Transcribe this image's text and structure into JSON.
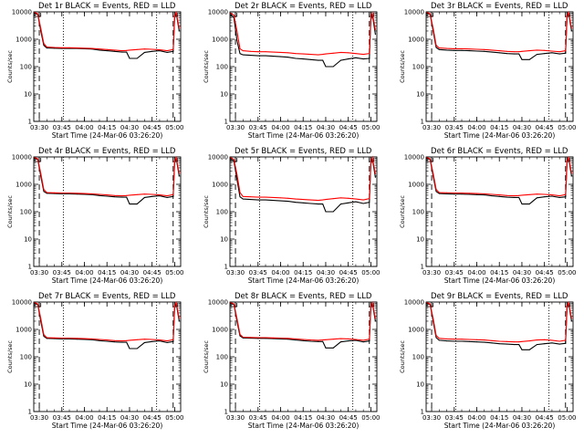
{
  "figure": {
    "x_axis_title": "Start Time (24-Mar-06 03:26:20)",
    "y_axis_title": "Counts/sec",
    "x_tick_labels": [
      "03:30",
      "03:45",
      "04:00",
      "04:15",
      "04:30",
      "04:45",
      "05:00"
    ],
    "y_tick_labels": [
      "1",
      "10",
      "100",
      "1000",
      "10000"
    ]
  },
  "colors": {
    "events": "#000000",
    "lld": "#ff0000",
    "axes": "#000000",
    "background": "#ffffff"
  },
  "chart_data": [
    {
      "type": "line",
      "title": "Det 1r BLACK = Events, RED = LLD",
      "xlabel": "Start Time (24-Mar-06 03:26:20)",
      "ylabel": "Counts/sec",
      "y_scale": "log",
      "ylim": [
        1,
        10000
      ],
      "xlim": [
        "03:26:20",
        "05:04"
      ],
      "x": [
        "03:27",
        "03:29",
        "03:31",
        "03:33",
        "03:35",
        "03:40",
        "03:45",
        "03:50",
        "03:55",
        "04:00",
        "04:05",
        "04:10",
        "04:15",
        "04:20",
        "04:25",
        "04:28",
        "04:30",
        "04:35",
        "04:40",
        "04:45",
        "04:50",
        "04:55",
        "04:59",
        "05:00",
        "05:01",
        "05:03"
      ],
      "series": [
        {
          "name": "BLACK = Events",
          "values": [
            9000,
            8000,
            2000,
            600,
            480,
            470,
            460,
            460,
            460,
            450,
            440,
            400,
            380,
            360,
            340,
            340,
            200,
            200,
            330,
            360,
            380,
            330,
            360,
            6000,
            9000,
            2000
          ]
        },
        {
          "name": "RED = LLD",
          "values": [
            9500,
            8500,
            2500,
            700,
            520,
            500,
            490,
            490,
            480,
            470,
            460,
            440,
            420,
            400,
            380,
            390,
            400,
            420,
            440,
            430,
            410,
            380,
            420,
            7000,
            9500,
            2500
          ]
        }
      ],
      "dashed_verticals": [
        "03:30",
        "04:59"
      ],
      "dotted_verticals": [
        "03:46",
        "04:48"
      ],
      "gaps": [
        "03:27-03:31",
        "04:59-05:02"
      ]
    },
    {
      "type": "line",
      "title": "Det 2r BLACK = Events, RED = LLD",
      "xlabel": "Start Time (24-Mar-06 03:26:20)",
      "ylabel": "Counts/sec",
      "y_scale": "log",
      "ylim": [
        1,
        10000
      ],
      "xlim": [
        "03:26:20",
        "05:04"
      ],
      "x": [
        "03:27",
        "03:29",
        "03:31",
        "03:33",
        "03:35",
        "03:40",
        "03:45",
        "03:50",
        "03:55",
        "04:00",
        "04:05",
        "04:10",
        "04:15",
        "04:20",
        "04:25",
        "04:28",
        "04:30",
        "04:35",
        "04:40",
        "04:45",
        "04:50",
        "04:55",
        "04:59",
        "05:00",
        "05:01",
        "05:03"
      ],
      "series": [
        {
          "name": "BLACK = Events",
          "values": [
            8000,
            6000,
            900,
            300,
            270,
            260,
            250,
            250,
            240,
            230,
            220,
            200,
            190,
            180,
            170,
            170,
            100,
            100,
            170,
            190,
            210,
            190,
            200,
            5000,
            8000,
            1500
          ]
        },
        {
          "name": "RED = LLD",
          "values": [
            9000,
            7500,
            2000,
            450,
            380,
            360,
            350,
            350,
            340,
            330,
            320,
            300,
            290,
            280,
            270,
            280,
            290,
            310,
            330,
            320,
            300,
            280,
            300,
            6500,
            9000,
            2200
          ]
        }
      ],
      "dashed_verticals": [
        "03:30",
        "04:59"
      ],
      "dotted_verticals": [
        "03:46",
        "04:48"
      ],
      "gaps": [
        "03:27-03:31",
        "04:59-05:02"
      ]
    },
    {
      "type": "line",
      "title": "Det 3r BLACK = Events, RED = LLD",
      "xlabel": "Start Time (24-Mar-06 03:26:20)",
      "ylabel": "Counts/sec",
      "y_scale": "log",
      "ylim": [
        1,
        10000
      ],
      "xlim": [
        "03:26:20",
        "05:04"
      ],
      "x": [
        "03:27",
        "03:29",
        "03:31",
        "03:33",
        "03:35",
        "03:40",
        "03:45",
        "03:50",
        "03:55",
        "04:00",
        "04:05",
        "04:10",
        "04:15",
        "04:20",
        "04:25",
        "04:28",
        "04:30",
        "04:35",
        "04:40",
        "04:45",
        "04:50",
        "04:55",
        "04:59",
        "05:00",
        "05:01",
        "05:03"
      ],
      "series": [
        {
          "name": "BLACK = Events",
          "values": [
            9000,
            8000,
            2000,
            500,
            420,
            400,
            390,
            390,
            380,
            370,
            360,
            340,
            320,
            300,
            290,
            290,
            180,
            180,
            280,
            300,
            320,
            290,
            310,
            6000,
            9000,
            2000
          ]
        },
        {
          "name": "RED = LLD",
          "values": [
            9500,
            8500,
            2500,
            600,
            480,
            460,
            450,
            450,
            440,
            430,
            420,
            400,
            380,
            360,
            350,
            350,
            360,
            380,
            400,
            390,
            370,
            350,
            380,
            7000,
            9500,
            2500
          ]
        }
      ],
      "dashed_verticals": [
        "03:30",
        "04:59"
      ],
      "dotted_verticals": [
        "03:46",
        "04:48"
      ],
      "gaps": [
        "03:27-03:31",
        "04:59-05:02"
      ]
    },
    {
      "type": "line",
      "title": "Det 4r BLACK = Events, RED = LLD",
      "xlabel": "Start Time (24-Mar-06 03:26:20)",
      "ylabel": "Counts/sec",
      "y_scale": "log",
      "ylim": [
        1,
        10000
      ],
      "xlim": [
        "03:26:20",
        "05:04"
      ],
      "x": [
        "03:27",
        "03:29",
        "03:31",
        "03:33",
        "03:35",
        "03:40",
        "03:45",
        "03:50",
        "03:55",
        "04:00",
        "04:05",
        "04:10",
        "04:15",
        "04:20",
        "04:25",
        "04:28",
        "04:30",
        "04:35",
        "04:40",
        "04:45",
        "04:50",
        "04:55",
        "04:59",
        "05:00",
        "05:01",
        "05:03"
      ],
      "series": [
        {
          "name": "BLACK = Events",
          "values": [
            9000,
            8000,
            2000,
            550,
            470,
            460,
            450,
            450,
            440,
            430,
            420,
            390,
            370,
            350,
            340,
            340,
            190,
            190,
            330,
            360,
            380,
            330,
            360,
            6000,
            9000,
            2000
          ]
        },
        {
          "name": "RED = LLD",
          "values": [
            9500,
            8500,
            2500,
            650,
            500,
            490,
            480,
            480,
            470,
            460,
            450,
            430,
            410,
            390,
            380,
            390,
            400,
            420,
            440,
            430,
            410,
            380,
            420,
            7000,
            9500,
            2500
          ]
        }
      ],
      "dashed_verticals": [
        "03:30",
        "04:59"
      ],
      "dotted_verticals": [
        "03:46",
        "04:48"
      ],
      "gaps": [
        "03:27-03:31",
        "04:59-05:02"
      ]
    },
    {
      "type": "line",
      "title": "Det 5r BLACK = Events, RED = LLD",
      "xlabel": "Start Time (24-Mar-06 03:26:20)",
      "ylabel": "Counts/sec",
      "y_scale": "log",
      "ylim": [
        1,
        10000
      ],
      "xlim": [
        "03:26:20",
        "05:04"
      ],
      "x": [
        "03:27",
        "03:29",
        "03:31",
        "03:33",
        "03:35",
        "03:40",
        "03:45",
        "03:50",
        "03:55",
        "04:00",
        "04:05",
        "04:10",
        "04:15",
        "04:20",
        "04:25",
        "04:28",
        "04:30",
        "04:35",
        "04:40",
        "04:45",
        "04:50",
        "04:55",
        "04:59",
        "05:00",
        "05:01",
        "05:03"
      ],
      "series": [
        {
          "name": "BLACK = Events",
          "values": [
            8500,
            7000,
            1500,
            350,
            290,
            280,
            270,
            270,
            260,
            250,
            240,
            220,
            210,
            200,
            190,
            190,
            100,
            100,
            190,
            210,
            230,
            200,
            220,
            5500,
            8500,
            1800
          ]
        },
        {
          "name": "RED = LLD",
          "values": [
            9500,
            8000,
            2300,
            500,
            360,
            350,
            340,
            340,
            330,
            320,
            310,
            290,
            280,
            270,
            260,
            270,
            280,
            300,
            320,
            310,
            290,
            270,
            300,
            6500,
            9500,
            2400
          ]
        }
      ],
      "dashed_verticals": [
        "03:30",
        "04:59"
      ],
      "dotted_verticals": [
        "03:46",
        "04:48"
      ],
      "gaps": [
        "03:27-03:31",
        "04:59-05:02"
      ]
    },
    {
      "type": "line",
      "title": "Det 6r BLACK = Events, RED = LLD",
      "xlabel": "Start Time (24-Mar-06 03:26:20)",
      "ylabel": "Counts/sec",
      "y_scale": "log",
      "ylim": [
        1,
        10000
      ],
      "xlim": [
        "03:26:20",
        "05:04"
      ],
      "x": [
        "03:27",
        "03:29",
        "03:31",
        "03:33",
        "03:35",
        "03:40",
        "03:45",
        "03:50",
        "03:55",
        "04:00",
        "04:05",
        "04:10",
        "04:15",
        "04:20",
        "04:25",
        "04:28",
        "04:30",
        "04:35",
        "04:40",
        "04:45",
        "04:50",
        "04:55",
        "04:59",
        "05:00",
        "05:01",
        "05:03"
      ],
      "series": [
        {
          "name": "BLACK = Events",
          "values": [
            9000,
            8000,
            2000,
            550,
            460,
            450,
            440,
            440,
            430,
            420,
            410,
            380,
            360,
            340,
            330,
            330,
            190,
            190,
            320,
            350,
            370,
            330,
            350,
            6000,
            9000,
            2000
          ]
        },
        {
          "name": "RED = LLD",
          "values": [
            9500,
            8500,
            2500,
            650,
            500,
            490,
            480,
            480,
            470,
            460,
            450,
            430,
            410,
            390,
            380,
            390,
            400,
            420,
            440,
            430,
            410,
            380,
            420,
            7000,
            9500,
            2500
          ]
        }
      ],
      "dashed_verticals": [
        "03:30",
        "04:59"
      ],
      "dotted_verticals": [
        "03:46",
        "04:48"
      ],
      "gaps": [
        "03:27-03:31",
        "04:59-05:02"
      ]
    },
    {
      "type": "line",
      "title": "Det 7r BLACK = Events, RED = LLD",
      "xlabel": "Start Time (24-Mar-06 03:26:20)",
      "ylabel": "Counts/sec",
      "y_scale": "log",
      "ylim": [
        1,
        10000
      ],
      "xlim": [
        "03:26:20",
        "05:04"
      ],
      "x": [
        "03:27",
        "03:29",
        "03:31",
        "03:33",
        "03:35",
        "03:40",
        "03:45",
        "03:50",
        "03:55",
        "04:00",
        "04:05",
        "04:10",
        "04:15",
        "04:20",
        "04:25",
        "04:28",
        "04:30",
        "04:35",
        "04:40",
        "04:45",
        "04:50",
        "04:55",
        "04:59",
        "05:00",
        "05:01",
        "05:03"
      ],
      "series": [
        {
          "name": "BLACK = Events",
          "values": [
            9000,
            8000,
            2000,
            560,
            470,
            460,
            450,
            450,
            440,
            430,
            420,
            390,
            370,
            350,
            340,
            340,
            200,
            200,
            330,
            360,
            380,
            330,
            360,
            6000,
            9000,
            2000
          ]
        },
        {
          "name": "RED = LLD",
          "values": [
            9500,
            8500,
            2500,
            650,
            500,
            490,
            480,
            480,
            470,
            460,
            450,
            430,
            410,
            390,
            380,
            390,
            400,
            420,
            440,
            430,
            410,
            380,
            420,
            7000,
            9500,
            2500
          ]
        }
      ],
      "dashed_verticals": [
        "03:30",
        "04:59"
      ],
      "dotted_verticals": [
        "03:46",
        "04:48"
      ],
      "gaps": [
        "03:27-03:31",
        "04:59-05:02"
      ]
    },
    {
      "type": "line",
      "title": "Det 8r BLACK = Events, RED = LLD",
      "xlabel": "Start Time (24-Mar-06 03:26:20)",
      "ylabel": "Counts/sec",
      "y_scale": "log",
      "ylim": [
        1,
        10000
      ],
      "xlim": [
        "03:26:20",
        "05:04"
      ],
      "x": [
        "03:27",
        "03:29",
        "03:31",
        "03:33",
        "03:35",
        "03:40",
        "03:45",
        "03:50",
        "03:55",
        "04:00",
        "04:05",
        "04:10",
        "04:15",
        "04:20",
        "04:25",
        "04:28",
        "04:30",
        "04:35",
        "04:40",
        "04:45",
        "04:50",
        "04:55",
        "04:59",
        "05:00",
        "05:01",
        "05:03"
      ],
      "series": [
        {
          "name": "BLACK = Events",
          "values": [
            9000,
            8000,
            2000,
            580,
            490,
            480,
            470,
            470,
            460,
            450,
            440,
            410,
            390,
            370,
            360,
            360,
            210,
            210,
            350,
            380,
            400,
            350,
            380,
            6000,
            9000,
            2000
          ]
        },
        {
          "name": "RED = LLD",
          "values": [
            9500,
            8500,
            2500,
            660,
            520,
            510,
            500,
            500,
            490,
            480,
            470,
            450,
            430,
            410,
            400,
            410,
            420,
            440,
            460,
            450,
            430,
            400,
            440,
            7000,
            9500,
            2500
          ]
        }
      ],
      "dashed_verticals": [
        "03:30",
        "04:59"
      ],
      "dotted_verticals": [
        "03:46",
        "04:48"
      ],
      "gaps": [
        "03:27-03:31",
        "04:59-05:02"
      ]
    },
    {
      "type": "line",
      "title": "Det 9r BLACK = Events, RED = LLD",
      "xlabel": "Start Time (24-Mar-06 03:26:20)",
      "ylabel": "Counts/sec",
      "y_scale": "log",
      "ylim": [
        1,
        10000
      ],
      "xlim": [
        "03:26:20",
        "05:04"
      ],
      "x": [
        "03:27",
        "03:29",
        "03:31",
        "03:33",
        "03:35",
        "03:40",
        "03:45",
        "03:50",
        "03:55",
        "04:00",
        "04:05",
        "04:10",
        "04:15",
        "04:20",
        "04:25",
        "04:28",
        "04:30",
        "04:35",
        "04:40",
        "04:45",
        "04:50",
        "04:55",
        "04:59",
        "05:00",
        "05:01",
        "05:03"
      ],
      "series": [
        {
          "name": "BLACK = Events",
          "values": [
            9000,
            8000,
            2000,
            500,
            400,
            380,
            370,
            370,
            360,
            350,
            340,
            320,
            300,
            290,
            280,
            280,
            180,
            180,
            280,
            300,
            320,
            290,
            310,
            6000,
            9000,
            2000
          ]
        },
        {
          "name": "RED = LLD",
          "values": [
            9500,
            8500,
            2500,
            600,
            470,
            450,
            440,
            440,
            430,
            420,
            410,
            390,
            370,
            360,
            350,
            350,
            360,
            380,
            410,
            420,
            400,
            370,
            400,
            7000,
            9500,
            2500
          ]
        }
      ],
      "dashed_verticals": [
        "03:30",
        "04:59"
      ],
      "dotted_verticals": [
        "03:46",
        "04:48"
      ],
      "gaps": [
        "03:27-03:31",
        "04:59-05:02"
      ]
    }
  ]
}
